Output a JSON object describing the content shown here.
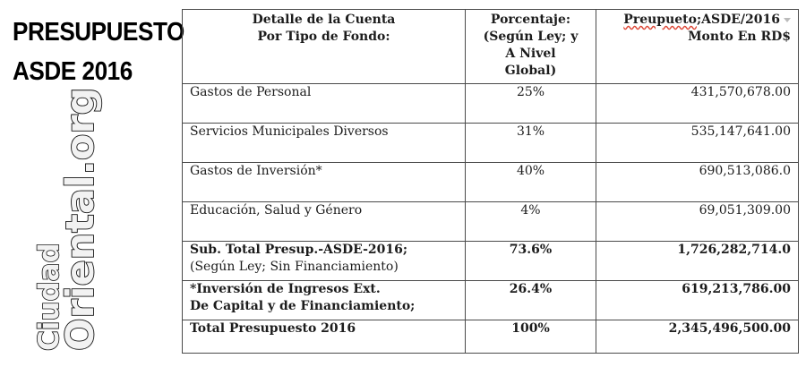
{
  "title": {
    "line1": "PRESUPUESTO",
    "line2": "ASDE 2016"
  },
  "watermark": {
    "line1": "Ciudad",
    "line2": "Oriental.org"
  },
  "table": {
    "headers": {
      "col1_line1": "Detalle de la Cuenta",
      "col1_line2": "Por Tipo de Fondo:",
      "col2_line1": "Porcentaje:",
      "col2_line2": "(Según Ley; y",
      "col2_line3": "A Nivel",
      "col2_line4": "Global)",
      "col3_line1_prefix": "Preupueto",
      "col3_line1_suffix": ";ASDE/2016",
      "col3_line2": "Monto En RD$"
    },
    "rows": [
      {
        "label": "Gastos de Personal",
        "percent": "25%",
        "amount": "431,570,678.00"
      },
      {
        "label": "Servicios Municipales Diversos",
        "percent": "31%",
        "amount": "535,147,641.00"
      },
      {
        "label": "Gastos de Inversión*",
        "percent": "40%",
        "amount": "690,513,086.0"
      },
      {
        "label": "Educación, Salud y Género",
        "percent": "4%",
        "amount": "69,051,309.00"
      }
    ],
    "subtotal": {
      "label_line1": "Sub. Total Presup.-ASDE-2016;",
      "label_line2": "(Según Ley; Sin Financiamiento)",
      "percent": "73.6%",
      "amount": "1,726,282,714.0"
    },
    "investment": {
      "label_line1": "*Inversión de Ingresos Ext.",
      "label_line2": "De Capital y de Financiamiento;",
      "percent": "26.4%",
      "amount": "619,213,786.00"
    },
    "total": {
      "label": "Total Presupuesto 2016",
      "percent": "100%",
      "amount": "2,345,496,500.00"
    }
  }
}
